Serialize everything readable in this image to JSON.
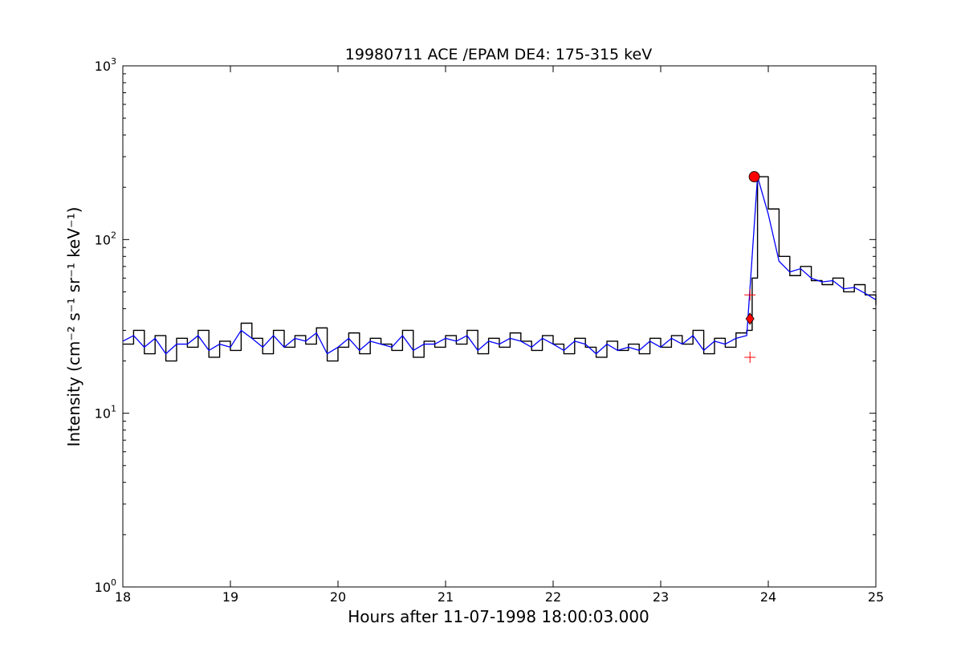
{
  "chart_data": {
    "type": "line",
    "title": "19980711 ACE /EPAM DE4: 175-315 keV",
    "xlabel": "Hours after 11-07-1998 18:00:03.000",
    "ylabel": "Intensity (cm⁻² s⁻¹ sr⁻¹ keV⁻¹)",
    "xlim": [
      18,
      25
    ],
    "ylim": [
      1,
      1000
    ],
    "yscale": "log",
    "grid": false,
    "x_ticks": [
      "18",
      "19",
      "20",
      "21",
      "22",
      "23",
      "24",
      "25"
    ],
    "y_ticks": [
      {
        "base": "10",
        "exp": "0"
      },
      {
        "base": "10",
        "exp": "1"
      },
      {
        "base": "10",
        "exp": "2"
      },
      {
        "base": "10",
        "exp": "3"
      }
    ],
    "series": [
      {
        "style": "black-raw-steps",
        "color": "#000000",
        "x": [
          18.0,
          18.1,
          18.2,
          18.3,
          18.4,
          18.5,
          18.6,
          18.7,
          18.8,
          18.9,
          19.0,
          19.1,
          19.2,
          19.3,
          19.4,
          19.5,
          19.6,
          19.7,
          19.8,
          19.9,
          20.0,
          20.1,
          20.2,
          20.3,
          20.4,
          20.5,
          20.6,
          20.7,
          20.8,
          20.9,
          21.0,
          21.1,
          21.2,
          21.3,
          21.4,
          21.5,
          21.6,
          21.7,
          21.8,
          21.9,
          22.0,
          22.1,
          22.2,
          22.3,
          22.4,
          22.5,
          22.6,
          22.7,
          22.8,
          22.9,
          23.0,
          23.1,
          23.2,
          23.3,
          23.4,
          23.5,
          23.6,
          23.7,
          23.8,
          23.85,
          23.9,
          24.0,
          24.1,
          24.2,
          24.3,
          24.4,
          24.5,
          24.6,
          24.7,
          24.8,
          24.9,
          25.0
        ],
        "y": [
          25,
          30,
          22,
          28,
          20,
          27,
          24,
          30,
          21,
          26,
          23,
          33,
          27,
          22,
          30,
          24,
          28,
          25,
          31,
          20,
          24,
          29,
          22,
          27,
          25,
          23,
          30,
          21,
          26,
          24,
          28,
          25,
          30,
          22,
          27,
          24,
          29,
          26,
          23,
          28,
          25,
          22,
          27,
          24,
          21,
          26,
          23,
          25,
          22,
          27,
          24,
          28,
          25,
          30,
          22,
          27,
          24,
          29,
          30,
          60,
          230,
          150,
          80,
          62,
          70,
          58,
          55,
          60,
          50,
          55,
          48,
          42
        ]
      },
      {
        "style": "blue-smoothed",
        "color": "#0000ff",
        "x": [
          18.0,
          18.1,
          18.2,
          18.3,
          18.4,
          18.5,
          18.6,
          18.7,
          18.8,
          18.9,
          19.0,
          19.1,
          19.2,
          19.3,
          19.4,
          19.5,
          19.6,
          19.7,
          19.8,
          19.9,
          20.0,
          20.1,
          20.2,
          20.3,
          20.4,
          20.5,
          20.6,
          20.7,
          20.8,
          20.9,
          21.0,
          21.1,
          21.2,
          21.3,
          21.4,
          21.5,
          21.6,
          21.7,
          21.8,
          21.9,
          22.0,
          22.1,
          22.2,
          22.3,
          22.4,
          22.5,
          22.6,
          22.7,
          22.8,
          22.9,
          23.0,
          23.1,
          23.2,
          23.3,
          23.4,
          23.5,
          23.6,
          23.7,
          23.8,
          23.85,
          23.9,
          24.0,
          24.1,
          24.2,
          24.3,
          24.4,
          24.5,
          24.6,
          24.7,
          24.8,
          24.9,
          25.0
        ],
        "y": [
          26,
          28,
          24,
          27,
          22,
          25,
          25,
          28,
          23,
          25,
          24,
          30,
          27,
          24,
          28,
          24,
          27,
          26,
          29,
          22,
          24,
          27,
          23,
          26,
          25,
          24,
          28,
          23,
          25,
          25,
          27,
          26,
          28,
          23,
          26,
          25,
          27,
          26,
          24,
          27,
          25,
          23,
          26,
          25,
          22,
          25,
          23,
          24,
          23,
          26,
          24,
          27,
          25,
          28,
          23,
          26,
          25,
          27,
          28,
          80,
          230,
          140,
          75,
          65,
          68,
          60,
          57,
          58,
          52,
          53,
          49,
          45
        ]
      }
    ],
    "markers": [
      {
        "shape": "circle",
        "color": "#ff0000",
        "x": 23.87,
        "y": 230
      },
      {
        "shape": "diamond",
        "color": "#ff0000",
        "x": 23.83,
        "y": 35
      },
      {
        "shape": "plus",
        "color": "#ff0000",
        "x": 23.83,
        "y": 48
      },
      {
        "shape": "plus",
        "color": "#ff0000",
        "x": 23.83,
        "y": 21
      }
    ]
  }
}
